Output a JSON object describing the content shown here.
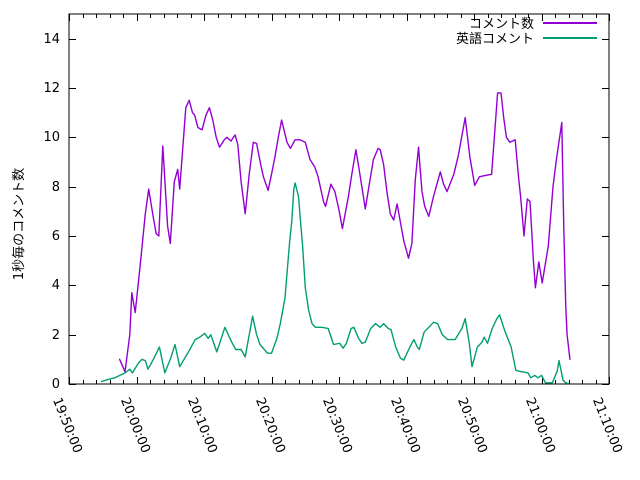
{
  "chart_data": {
    "type": "line",
    "title": "",
    "xlabel": "",
    "ylabel": "1秒毎のコメント数",
    "xlim": [
      "19:50:00",
      "21:10:00"
    ],
    "ylim": [
      0,
      15
    ],
    "x_major_ticks": [
      "19:50:00",
      "20:00:00",
      "20:10:00",
      "20:20:00",
      "20:30:00",
      "20:40:00",
      "20:50:00",
      "21:00:00",
      "21:10:00"
    ],
    "x_minor_tick_interval_minutes": 2,
    "y_ticks": [
      0,
      2,
      4,
      6,
      8,
      10,
      12,
      14
    ],
    "grid": false,
    "legend_position": "top-right-inside",
    "border": "full box with inward mirrored ticks",
    "axis_color": "#000000",
    "background_color": "#ffffff",
    "x_points_unit": "minutes after 19:50:00",
    "series": [
      {
        "name": "コメント数",
        "color": "#9400d3",
        "points": [
          [
            7.5,
            1.0
          ],
          [
            8.3,
            0.5
          ],
          [
            9.0,
            2.0
          ],
          [
            9.3,
            3.7
          ],
          [
            9.8,
            2.9
          ],
          [
            10.5,
            4.7
          ],
          [
            11.3,
            6.9
          ],
          [
            11.8,
            7.9
          ],
          [
            12.4,
            6.9
          ],
          [
            12.9,
            6.1
          ],
          [
            13.3,
            6.0
          ],
          [
            13.9,
            9.65
          ],
          [
            14.6,
            6.4
          ],
          [
            15.0,
            5.7
          ],
          [
            15.6,
            8.2
          ],
          [
            16.1,
            8.7
          ],
          [
            16.4,
            7.9
          ],
          [
            17.3,
            11.2
          ],
          [
            17.8,
            11.5
          ],
          [
            18.3,
            11.0
          ],
          [
            18.6,
            10.9
          ],
          [
            19.1,
            10.4
          ],
          [
            19.7,
            10.3
          ],
          [
            20.3,
            10.9
          ],
          [
            20.8,
            11.2
          ],
          [
            21.3,
            10.7
          ],
          [
            21.8,
            10.0
          ],
          [
            22.3,
            9.6
          ],
          [
            23.0,
            9.9
          ],
          [
            23.4,
            10.0
          ],
          [
            24.0,
            9.85
          ],
          [
            24.6,
            10.1
          ],
          [
            25.0,
            9.7
          ],
          [
            25.5,
            8.2
          ],
          [
            26.1,
            6.9
          ],
          [
            26.7,
            8.5
          ],
          [
            27.3,
            9.8
          ],
          [
            27.8,
            9.75
          ],
          [
            28.4,
            8.9
          ],
          [
            28.8,
            8.4
          ],
          [
            29.5,
            7.85
          ],
          [
            30.0,
            8.5
          ],
          [
            30.5,
            9.2
          ],
          [
            31.0,
            10.0
          ],
          [
            31.5,
            10.7
          ],
          [
            32.3,
            9.8
          ],
          [
            32.8,
            9.55
          ],
          [
            33.5,
            9.9
          ],
          [
            34.2,
            9.9
          ],
          [
            35.0,
            9.8
          ],
          [
            35.7,
            9.1
          ],
          [
            36.4,
            8.8
          ],
          [
            36.9,
            8.4
          ],
          [
            37.7,
            7.4
          ],
          [
            38.0,
            7.2
          ],
          [
            38.8,
            8.1
          ],
          [
            39.4,
            7.8
          ],
          [
            40.0,
            7.05
          ],
          [
            40.5,
            6.3
          ],
          [
            41.4,
            7.6
          ],
          [
            41.9,
            8.5
          ],
          [
            42.5,
            9.5
          ],
          [
            43.1,
            8.5
          ],
          [
            43.9,
            7.1
          ],
          [
            44.6,
            8.3
          ],
          [
            45.1,
            9.1
          ],
          [
            45.8,
            9.55
          ],
          [
            46.1,
            9.5
          ],
          [
            46.6,
            8.9
          ],
          [
            47.1,
            7.8
          ],
          [
            47.6,
            6.9
          ],
          [
            48.1,
            6.65
          ],
          [
            48.6,
            7.3
          ],
          [
            49.2,
            6.4
          ],
          [
            49.6,
            5.8
          ],
          [
            50.3,
            5.1
          ],
          [
            50.8,
            5.7
          ],
          [
            51.3,
            8.3
          ],
          [
            51.8,
            9.6
          ],
          [
            52.0,
            8.8
          ],
          [
            52.3,
            7.8
          ],
          [
            52.7,
            7.2
          ],
          [
            53.3,
            6.8
          ],
          [
            54.0,
            7.6
          ],
          [
            54.5,
            8.1
          ],
          [
            55.0,
            8.6
          ],
          [
            55.5,
            8.1
          ],
          [
            56.0,
            7.8
          ],
          [
            57.0,
            8.5
          ],
          [
            57.7,
            9.3
          ],
          [
            58.3,
            10.2
          ],
          [
            58.7,
            10.8
          ],
          [
            59.4,
            9.2
          ],
          [
            60.1,
            8.05
          ],
          [
            60.8,
            8.4
          ],
          [
            61.6,
            8.45
          ],
          [
            62.6,
            8.5
          ],
          [
            63.1,
            10.3
          ],
          [
            63.5,
            11.8
          ],
          [
            64.0,
            11.8
          ],
          [
            64.4,
            10.8
          ],
          [
            64.8,
            10.0
          ],
          [
            65.3,
            9.8
          ],
          [
            66.1,
            9.9
          ],
          [
            66.6,
            8.4
          ],
          [
            66.9,
            7.6
          ],
          [
            67.4,
            6.0
          ],
          [
            67.9,
            7.5
          ],
          [
            68.3,
            7.4
          ],
          [
            68.8,
            5.0
          ],
          [
            69.1,
            3.9
          ],
          [
            69.6,
            4.95
          ],
          [
            70.1,
            4.1
          ],
          [
            71.0,
            5.6
          ],
          [
            71.7,
            8.0
          ],
          [
            72.2,
            9.1
          ],
          [
            73.0,
            10.6
          ],
          [
            73.3,
            6.3
          ],
          [
            73.6,
            3.1
          ],
          [
            73.8,
            2.0
          ],
          [
            74.2,
            1.0
          ]
        ]
      },
      {
        "name": "英語コメント",
        "color": "#009e73",
        "points": [
          [
            4.8,
            0.1
          ],
          [
            6.0,
            0.2
          ],
          [
            6.8,
            0.25
          ],
          [
            8.3,
            0.45
          ],
          [
            9.0,
            0.6
          ],
          [
            9.4,
            0.45
          ],
          [
            10.3,
            0.85
          ],
          [
            10.8,
            1.0
          ],
          [
            11.3,
            0.95
          ],
          [
            11.7,
            0.6
          ],
          [
            12.5,
            1.0
          ],
          [
            13.4,
            1.5
          ],
          [
            14.2,
            0.45
          ],
          [
            15.0,
            1.0
          ],
          [
            15.7,
            1.6
          ],
          [
            16.4,
            0.7
          ],
          [
            17.7,
            1.3
          ],
          [
            18.7,
            1.8
          ],
          [
            19.4,
            1.9
          ],
          [
            20.1,
            2.05
          ],
          [
            20.6,
            1.85
          ],
          [
            21.0,
            2.0
          ],
          [
            21.9,
            1.3
          ],
          [
            23.1,
            2.3
          ],
          [
            24.1,
            1.7
          ],
          [
            24.7,
            1.4
          ],
          [
            25.5,
            1.4
          ],
          [
            26.1,
            1.1
          ],
          [
            27.2,
            2.75
          ],
          [
            27.8,
            2.0
          ],
          [
            28.3,
            1.6
          ],
          [
            29.4,
            1.25
          ],
          [
            30.0,
            1.25
          ],
          [
            30.8,
            1.85
          ],
          [
            31.3,
            2.45
          ],
          [
            32.0,
            3.5
          ],
          [
            32.7,
            5.8
          ],
          [
            33.0,
            6.6
          ],
          [
            33.3,
            7.9
          ],
          [
            33.5,
            8.15
          ],
          [
            34.0,
            7.6
          ],
          [
            34.3,
            6.6
          ],
          [
            34.6,
            5.6
          ],
          [
            35.0,
            3.9
          ],
          [
            35.5,
            3.0
          ],
          [
            36.0,
            2.45
          ],
          [
            36.5,
            2.3
          ],
          [
            37.5,
            2.3
          ],
          [
            38.4,
            2.25
          ],
          [
            39.2,
            1.6
          ],
          [
            40.1,
            1.65
          ],
          [
            40.6,
            1.45
          ],
          [
            41.1,
            1.65
          ],
          [
            41.8,
            2.25
          ],
          [
            42.2,
            2.3
          ],
          [
            42.9,
            1.85
          ],
          [
            43.4,
            1.65
          ],
          [
            43.9,
            1.7
          ],
          [
            44.7,
            2.25
          ],
          [
            45.4,
            2.45
          ],
          [
            46.1,
            2.3
          ],
          [
            46.6,
            2.45
          ],
          [
            47.3,
            2.25
          ],
          [
            47.7,
            2.2
          ],
          [
            48.4,
            1.5
          ],
          [
            49.1,
            1.05
          ],
          [
            49.6,
            0.97
          ],
          [
            50.5,
            1.5
          ],
          [
            51.1,
            1.8
          ],
          [
            51.6,
            1.5
          ],
          [
            51.9,
            1.4
          ],
          [
            52.6,
            2.1
          ],
          [
            53.3,
            2.3
          ],
          [
            54.0,
            2.5
          ],
          [
            54.6,
            2.45
          ],
          [
            55.3,
            2.0
          ],
          [
            56.1,
            1.8
          ],
          [
            57.2,
            1.8
          ],
          [
            58.2,
            2.25
          ],
          [
            58.7,
            2.65
          ],
          [
            59.3,
            1.65
          ],
          [
            59.7,
            0.7
          ],
          [
            60.5,
            1.5
          ],
          [
            61.2,
            1.7
          ],
          [
            61.5,
            1.9
          ],
          [
            62.0,
            1.65
          ],
          [
            62.7,
            2.25
          ],
          [
            63.4,
            2.65
          ],
          [
            63.8,
            2.8
          ],
          [
            64.5,
            2.2
          ],
          [
            65.5,
            1.5
          ],
          [
            66.2,
            0.55
          ],
          [
            67.0,
            0.5
          ],
          [
            68.0,
            0.45
          ],
          [
            68.4,
            0.25
          ],
          [
            69.0,
            0.35
          ],
          [
            69.5,
            0.25
          ],
          [
            70.0,
            0.35
          ],
          [
            70.6,
            0.05
          ],
          [
            71.6,
            0.05
          ],
          [
            72.3,
            0.5
          ],
          [
            72.6,
            0.95
          ],
          [
            73.2,
            0.15
          ],
          [
            73.6,
            0.05
          ],
          [
            74.0,
            0.02
          ]
        ]
      }
    ]
  }
}
